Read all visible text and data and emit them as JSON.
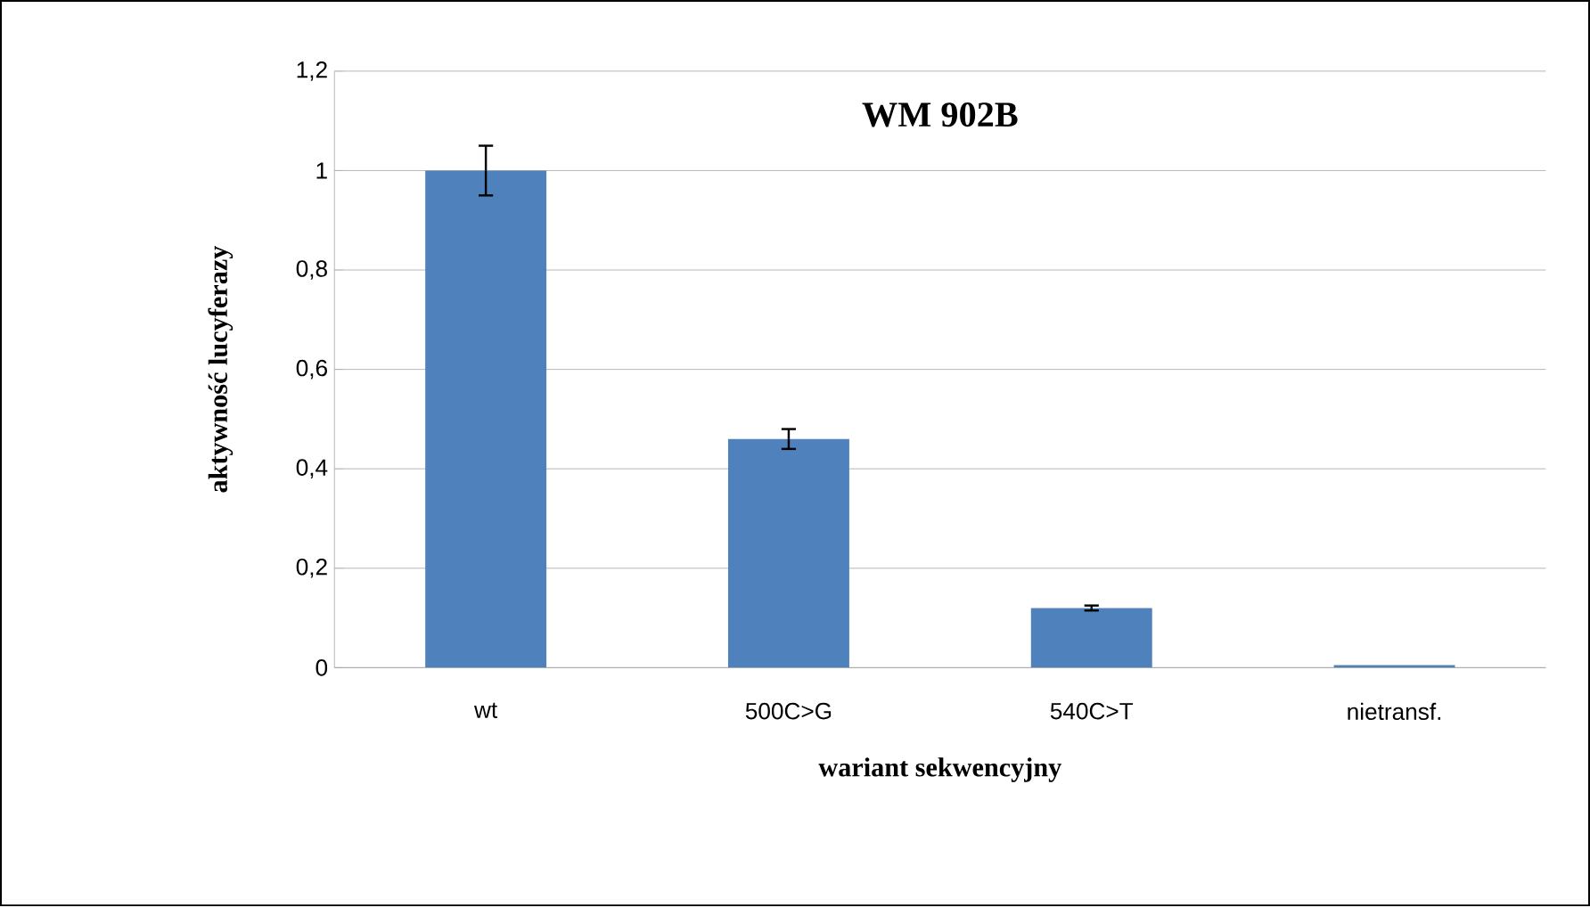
{
  "chart_data": {
    "type": "bar",
    "title": "WM 902B",
    "xlabel": "wariant sekwencyjny",
    "ylabel": "aktywność lucyferazy",
    "categories": [
      "wt",
      "500C>G",
      "540C>T",
      "nietransf."
    ],
    "values": [
      1.0,
      0.46,
      0.12,
      0.005
    ],
    "errors": [
      0.05,
      0.02,
      0.005,
      null
    ],
    "color": "#4f81bd",
    "ylim": [
      0,
      1.2
    ],
    "yticks": [
      0,
      {
        "value": 0.2,
        "label": "0,2"
      },
      {
        "value": 0.4,
        "label": "0,4"
      },
      {
        "value": 0.6,
        "label": "0,6"
      },
      {
        "value": 0.8,
        "label": "0,8"
      },
      1,
      {
        "value": 1.2,
        "label": "1,2"
      }
    ],
    "grid": "y"
  }
}
